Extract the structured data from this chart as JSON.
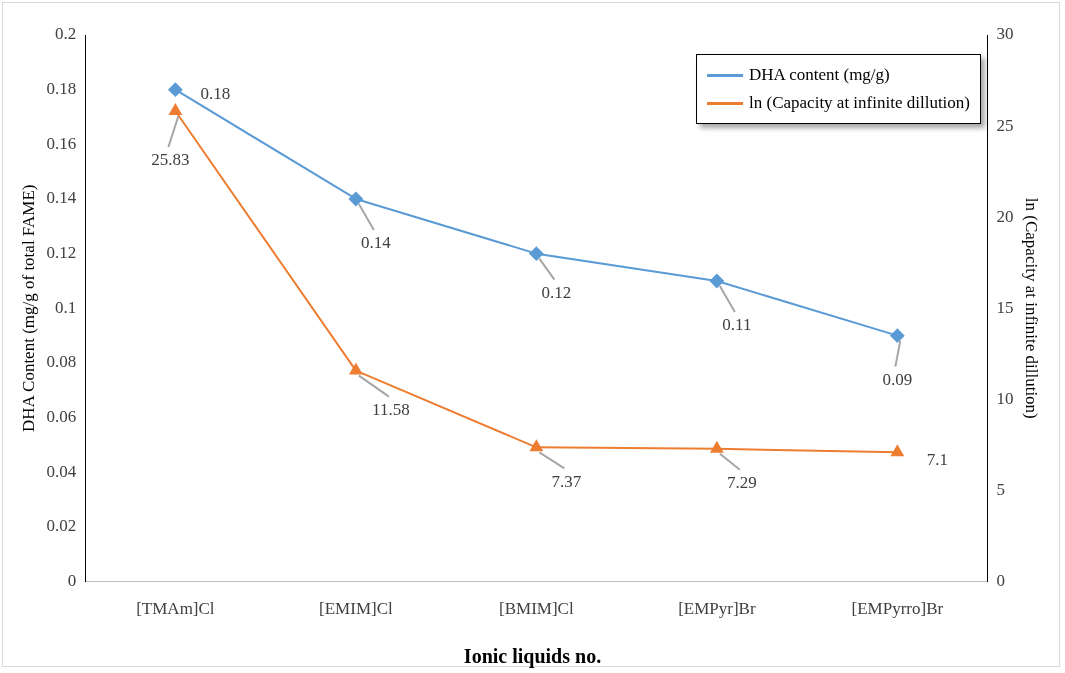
{
  "chart_data": {
    "type": "line",
    "categories": [
      "[TMAm]Cl",
      "[EMIM]Cl",
      "[BMIM]Cl",
      "[EMPyr]Br",
      "[EMPyrro]Br"
    ],
    "series": [
      {
        "name": "DHA content (mg/g)",
        "color": "#5b9bd5",
        "marker": "diamond",
        "values": [
          0.18,
          0.14,
          0.12,
          0.11,
          0.09
        ]
      },
      {
        "name": "ln (Capacity at infinite dillution)",
        "color": "#ed7d31",
        "marker": "triangle",
        "axis": "y2",
        "values": [
          25.83,
          11.58,
          7.37,
          7.29,
          7.1
        ]
      }
    ],
    "xlabel": "Ionic liquids no.",
    "ylabel": "DHA Content (mg/g of total FAME)",
    "y2label": "ln (Capacity at infinite dillution)",
    "ylim": [
      0,
      0.2
    ],
    "yticks": [
      0,
      0.02,
      0.04,
      0.06,
      0.08,
      0.1,
      0.12,
      0.14,
      0.16,
      0.18,
      0.2
    ],
    "y2lim": [
      0,
      30
    ],
    "y2ticks": [
      0,
      5,
      10,
      15,
      20,
      25,
      30
    ],
    "data_labels": true,
    "legend": "top right",
    "grid": false,
    "line_style": "solid"
  }
}
